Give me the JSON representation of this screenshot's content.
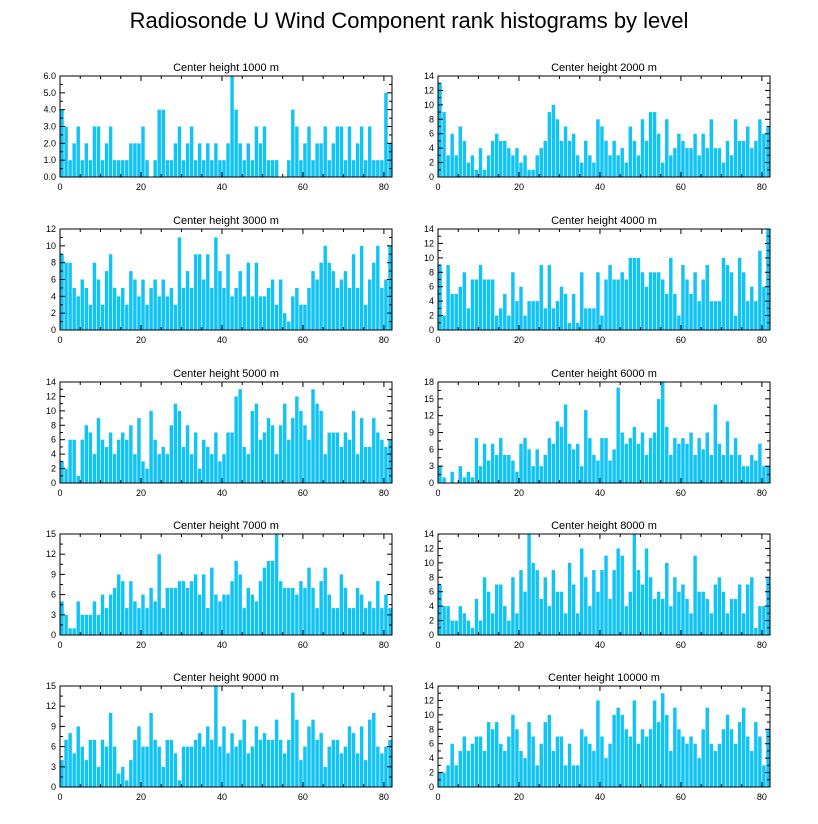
{
  "title": "Radiosonde U Wind Component rank histograms by level",
  "chart_data": [
    {
      "type": "bar",
      "title": "Center height 1000 m",
      "xlim": [
        0,
        82
      ],
      "ylim": [
        0,
        6
      ],
      "xticks": [
        "0",
        "20",
        "40",
        "60",
        "80"
      ],
      "yticks": [
        "0.0",
        "1.0",
        "2.0",
        "3.0",
        "4.0",
        "5.0",
        "6.0"
      ],
      "values": [
        4,
        3,
        1,
        2,
        3,
        1,
        2,
        1,
        3,
        3,
        1,
        2,
        3,
        1,
        1,
        1,
        1,
        2,
        2,
        2,
        3,
        1,
        0,
        1,
        4,
        4,
        1,
        1,
        2,
        3,
        1,
        2,
        3,
        1,
        2,
        1,
        2,
        1,
        2,
        1,
        1,
        2,
        6,
        4,
        2,
        1,
        2,
        1,
        3,
        2,
        3,
        1,
        1,
        1,
        0,
        0,
        1,
        4,
        3,
        1,
        2,
        3,
        1,
        2,
        2,
        3,
        1,
        2,
        3,
        3,
        1,
        3,
        1,
        2,
        3,
        1,
        3,
        1,
        1,
        1,
        5,
        2
      ]
    },
    {
      "type": "bar",
      "title": "Center height 2000 m",
      "xlim": [
        0,
        82
      ],
      "ylim": [
        0,
        14
      ],
      "xticks": [
        "0",
        "20",
        "40",
        "60",
        "80"
      ],
      "yticks": [
        "0",
        "2",
        "4",
        "6",
        "8",
        "10",
        "12",
        "14"
      ],
      "values": [
        13,
        9,
        3,
        6,
        3,
        7,
        5,
        2,
        3,
        1,
        4,
        1,
        3,
        5,
        6,
        5,
        5,
        4,
        3,
        4,
        2,
        3,
        1,
        1,
        3,
        4,
        5,
        9,
        10,
        8,
        5,
        7,
        5,
        6,
        3,
        2,
        5,
        3,
        2,
        8,
        7,
        5,
        3,
        5,
        3,
        4,
        2,
        7,
        5,
        3,
        8,
        5,
        9,
        9,
        6,
        2,
        8,
        3,
        4,
        6,
        5,
        4,
        4,
        6,
        3,
        6,
        4,
        8,
        4,
        4,
        2,
        5,
        3,
        8,
        5,
        5,
        7,
        4,
        5,
        8,
        6,
        7
      ]
    },
    {
      "type": "bar",
      "title": "Center height 3000 m",
      "xlim": [
        0,
        82
      ],
      "ylim": [
        0,
        12
      ],
      "xticks": [
        "0",
        "20",
        "40",
        "60",
        "80"
      ],
      "yticks": [
        "0",
        "2",
        "4",
        "6",
        "8",
        "10",
        "12"
      ],
      "values": [
        9,
        8,
        8,
        5,
        4,
        6,
        5,
        3,
        8,
        6,
        3,
        7,
        9,
        5,
        4,
        5,
        3,
        7,
        6,
        4,
        6,
        3,
        5,
        6,
        4,
        6,
        4,
        5,
        3,
        11,
        5,
        7,
        5,
        9,
        9,
        6,
        9,
        5,
        11,
        7,
        5,
        9,
        4,
        5,
        7,
        4,
        8,
        4,
        8,
        4,
        4,
        5,
        6,
        3,
        6,
        2,
        1,
        4,
        5,
        3,
        3,
        5,
        7,
        6,
        8,
        10,
        8,
        7,
        5,
        6,
        7,
        5,
        9,
        5,
        10,
        3,
        6,
        8,
        10,
        5,
        6,
        10
      ]
    },
    {
      "type": "bar",
      "title": "Center height 4000 m",
      "xlim": [
        0,
        82
      ],
      "ylim": [
        0,
        14
      ],
      "xticks": [
        "0",
        "20",
        "40",
        "60",
        "80"
      ],
      "yticks": [
        "0",
        "2",
        "4",
        "6",
        "8",
        "10",
        "12",
        "14"
      ],
      "values": [
        9,
        2,
        9,
        5,
        5,
        6,
        8,
        3,
        7,
        7,
        9,
        7,
        7,
        7,
        2,
        3,
        5,
        2,
        8,
        4,
        6,
        2,
        4,
        4,
        4,
        9,
        3,
        9,
        3,
        4,
        6,
        5,
        1,
        5,
        1,
        8,
        3,
        3,
        3,
        8,
        2,
        7,
        9,
        7,
        7,
        8,
        7,
        10,
        10,
        10,
        8,
        6,
        8,
        8,
        8,
        7,
        5,
        10,
        5,
        2,
        9,
        7,
        5,
        8,
        4,
        7,
        9,
        4,
        4,
        4,
        10,
        9,
        8,
        2,
        10,
        8,
        4,
        6,
        4,
        11,
        6,
        14
      ]
    },
    {
      "type": "bar",
      "title": "Center height 5000 m",
      "xlim": [
        0,
        82
      ],
      "ylim": [
        0,
        14
      ],
      "xticks": [
        "0",
        "20",
        "40",
        "60",
        "80"
      ],
      "yticks": [
        "0",
        "2",
        "4",
        "6",
        "8",
        "10",
        "12",
        "14"
      ],
      "values": [
        3,
        2,
        6,
        6,
        1,
        6,
        8,
        7,
        4,
        9,
        6,
        5,
        7,
        4,
        6,
        7,
        6,
        8,
        4,
        9,
        3,
        2,
        10,
        6,
        4,
        5,
        4,
        8,
        11,
        10,
        5,
        8,
        4,
        7,
        2,
        6,
        5,
        4,
        7,
        3,
        4,
        7,
        7,
        12,
        13,
        5,
        4,
        10,
        11,
        6,
        7,
        9,
        8,
        4,
        8,
        11,
        6,
        9,
        12,
        10,
        8,
        6,
        13,
        11,
        10,
        4,
        7,
        7,
        7,
        5,
        7,
        6,
        10,
        4,
        9,
        5,
        5,
        9,
        7,
        6,
        5,
        6
      ]
    },
    {
      "type": "bar",
      "title": "Center height 6000 m",
      "xlim": [
        0,
        82
      ],
      "ylim": [
        0,
        18
      ],
      "xticks": [
        "0",
        "20",
        "40",
        "60",
        "80"
      ],
      "yticks": [
        "0",
        "3",
        "6",
        "9",
        "12",
        "15",
        "18"
      ],
      "values": [
        3,
        1,
        0,
        2,
        0,
        3,
        1,
        2,
        1,
        8,
        3,
        7,
        4,
        7,
        5,
        8,
        5,
        5,
        4,
        2,
        7,
        8,
        6,
        3,
        6,
        3,
        5,
        8,
        7,
        11,
        10,
        14,
        7,
        6,
        7,
        3,
        13,
        8,
        5,
        4,
        8,
        8,
        4,
        6,
        17,
        9,
        7,
        8,
        10,
        7,
        9,
        5,
        8,
        9,
        15,
        18,
        10,
        5,
        8,
        7,
        8,
        7,
        9,
        5,
        8,
        6,
        9,
        5,
        14,
        7,
        5,
        11,
        5,
        8,
        5,
        3,
        3,
        5,
        4,
        7,
        3,
        3
      ]
    },
    {
      "type": "bar",
      "title": "Center height 7000 m",
      "xlim": [
        0,
        82
      ],
      "ylim": [
        0,
        15
      ],
      "xticks": [
        "0",
        "20",
        "40",
        "60",
        "80"
      ],
      "yticks": [
        "0",
        "3",
        "6",
        "9",
        "12",
        "15"
      ],
      "values": [
        5,
        3,
        1,
        1,
        5,
        3,
        3,
        3,
        5,
        3,
        6,
        4,
        6,
        7,
        9,
        8,
        4,
        8,
        5,
        4,
        6,
        4,
        7,
        5,
        12,
        4,
        7,
        7,
        7,
        8,
        8,
        7,
        8,
        9,
        6,
        9,
        4,
        10,
        6,
        5,
        6,
        6,
        8,
        11,
        9,
        4,
        7,
        6,
        5,
        8,
        10,
        11,
        11,
        15,
        8,
        7,
        7,
        7,
        6,
        8,
        7,
        10,
        7,
        4,
        8,
        10,
        6,
        4,
        4,
        9,
        7,
        4,
        4,
        7,
        6,
        4,
        5,
        4,
        8,
        4,
        6,
        4
      ]
    },
    {
      "type": "bar",
      "title": "Center height 8000 m",
      "xlim": [
        0,
        82
      ],
      "ylim": [
        0,
        14
      ],
      "xticks": [
        "0",
        "20",
        "40",
        "60",
        "80"
      ],
      "yticks": [
        "0",
        "2",
        "4",
        "6",
        "8",
        "10",
        "12",
        "14"
      ],
      "values": [
        7,
        4,
        4,
        2,
        2,
        4,
        3,
        2,
        1,
        5,
        2,
        8,
        6,
        3,
        7,
        7,
        4,
        2,
        8,
        3,
        9,
        6,
        14,
        10,
        9,
        5,
        8,
        4,
        9,
        6,
        6,
        3,
        10,
        7,
        3,
        12,
        8,
        4,
        9,
        6,
        9,
        11,
        5,
        9,
        12,
        11,
        4,
        6,
        14,
        9,
        7,
        12,
        8,
        5,
        6,
        5,
        10,
        4,
        8,
        6,
        7,
        5,
        3,
        11,
        6,
        6,
        5,
        3,
        7,
        8,
        6,
        3,
        5,
        5,
        7,
        3,
        7,
        8,
        1,
        4,
        4,
        8
      ]
    },
    {
      "type": "bar",
      "title": "Center height 9000 m",
      "xlim": [
        0,
        82
      ],
      "ylim": [
        0,
        15
      ],
      "xticks": [
        "0",
        "20",
        "40",
        "60",
        "80"
      ],
      "yticks": [
        "0",
        "3",
        "6",
        "9",
        "12",
        "15"
      ],
      "values": [
        4,
        7,
        8,
        5,
        9,
        6,
        4,
        7,
        7,
        3,
        7,
        6,
        11,
        6,
        2,
        3,
        1,
        4,
        7,
        9,
        6,
        6,
        11,
        7,
        6,
        3,
        7,
        7,
        5,
        1,
        6,
        6,
        6,
        7,
        8,
        6,
        9,
        7,
        15,
        6,
        9,
        5,
        8,
        6,
        7,
        10,
        5,
        6,
        9,
        7,
        8,
        7,
        7,
        10,
        7,
        5,
        7,
        14,
        10,
        4,
        6,
        9,
        10,
        7,
        8,
        3,
        6,
        7,
        7,
        5,
        6,
        9,
        8,
        5,
        9,
        4,
        10,
        11,
        6,
        5,
        6,
        7
      ]
    },
    {
      "type": "bar",
      "title": "Center height 10000 m",
      "xlim": [
        0,
        82
      ],
      "ylim": [
        0,
        14
      ],
      "xticks": [
        "0",
        "20",
        "40",
        "60",
        "80"
      ],
      "yticks": [
        "0",
        "2",
        "4",
        "6",
        "8",
        "10",
        "12",
        "14"
      ],
      "values": [
        2,
        2,
        3,
        6,
        3,
        5,
        7,
        5,
        6,
        7,
        7,
        5,
        9,
        8,
        9,
        6,
        5,
        7,
        10,
        8,
        5,
        4,
        9,
        7,
        3,
        6,
        9,
        10,
        5,
        7,
        7,
        3,
        6,
        3,
        3,
        8,
        7,
        6,
        5,
        12,
        7,
        4,
        6,
        10,
        11,
        10,
        8,
        7,
        12,
        6,
        8,
        7,
        8,
        12,
        9,
        13,
        10,
        5,
        11,
        8,
        7,
        6,
        7,
        6,
        4,
        8,
        11,
        6,
        5,
        6,
        8,
        10,
        8,
        6,
        9,
        11,
        7,
        5,
        9,
        7,
        3,
        8
      ]
    }
  ],
  "colors": {
    "bar": "#12c4f6",
    "axis": "#000000"
  }
}
